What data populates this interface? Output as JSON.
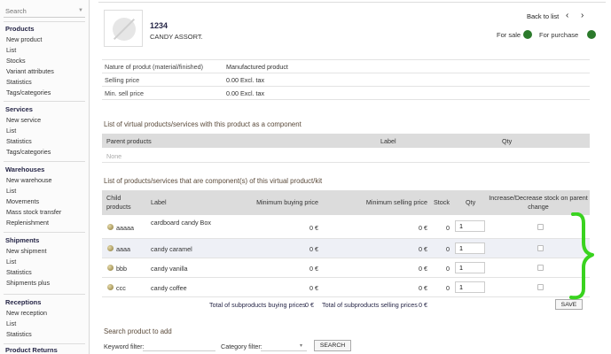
{
  "sidebar": {
    "search_placeholder": "Search",
    "sections": [
      {
        "title": "Products",
        "items": [
          "New product",
          "List",
          "Stocks",
          "Variant attributes",
          "Statistics",
          "Tags/categories"
        ]
      },
      {
        "title": "Services",
        "items": [
          "New service",
          "List",
          "Statistics",
          "Tags/categories"
        ]
      },
      {
        "title": "Warehouses",
        "items": [
          "New warehouse",
          "List",
          "Movements",
          "Mass stock transfer",
          "Replenishment"
        ]
      },
      {
        "title": "Shipments",
        "items": [
          "New shipment",
          "List",
          "Statistics",
          "Shipments plus"
        ]
      },
      {
        "title": "Receptions",
        "items": [
          "New reception",
          "List",
          "Statistics"
        ]
      },
      {
        "title": "Product Returns",
        "items": []
      }
    ]
  },
  "product": {
    "ref": "1234",
    "label": "CANDY ASSORT."
  },
  "nav": {
    "back": "Back to list",
    "prev": "‹",
    "next": "›",
    "for_sale": "For sale",
    "for_purchase": "For purchase",
    "status_color": "#2b7a2b"
  },
  "info": [
    {
      "k": "Nature of produt (material/finished)",
      "v": "Manufactured product"
    },
    {
      "k": "Selling price",
      "v": "0.00 Excl. tax"
    },
    {
      "k": "Min. sell price",
      "v": "0.00 Excl. tax"
    }
  ],
  "parents": {
    "title": "List of virtual products/services with this product as a component",
    "headers": {
      "parent": "Parent products",
      "label": "Label",
      "qty": "Qty"
    },
    "empty": "None"
  },
  "components": {
    "title": "List of products/services that are component(s) of this virtual product/kit",
    "headers": {
      "child": "Child products",
      "label": "Label",
      "min_buy": "Minimum buying price",
      "min_sell": "Minimum selling price",
      "stock": "Stock",
      "qty": "Qty",
      "incdec": "Increase/Decrease stock on parent change"
    },
    "rows": [
      {
        "ref": "aaaaa",
        "label": "cardboard candy Box",
        "buy": "0 €",
        "sell": "0 €",
        "stock": "0",
        "qty": "1"
      },
      {
        "ref": "aaaa",
        "label": "candy caramel",
        "buy": "0 €",
        "sell": "0 €",
        "stock": "0",
        "qty": "1"
      },
      {
        "ref": "bbb",
        "label": "candy vanilla",
        "buy": "0 €",
        "sell": "0 €",
        "stock": "0",
        "qty": "1"
      },
      {
        "ref": "ccc",
        "label": "candy coffee",
        "buy": "0 €",
        "sell": "0 €",
        "stock": "0",
        "qty": "1"
      }
    ],
    "totals": {
      "buy_label": "Total of subproducts buying prices",
      "buy_value": "0 €",
      "sell_label": "Total of subproducts selling prices",
      "sell_value": "0 €"
    },
    "save": "SAVE"
  },
  "search": {
    "title": "Search product to add",
    "keyword_label": "Keyword filter:",
    "category_label": "Category filter:",
    "button": "SEARCH"
  },
  "annotation_color": "#39d31f"
}
